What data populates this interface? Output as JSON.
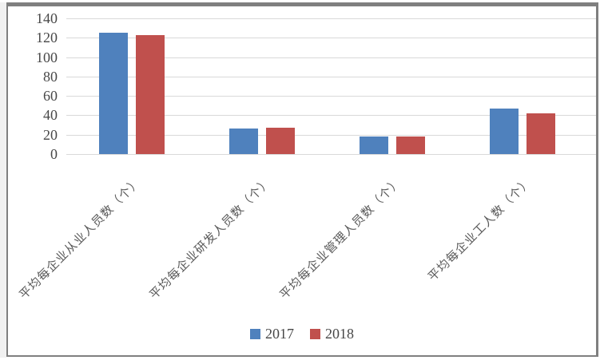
{
  "chart_data": {
    "type": "bar",
    "categories": [
      "平均每企业从业人员数（个）",
      "平均每企业研发人员数（个）",
      "平均每企业管理人员数（个）",
      "平均每企业工人数（个）"
    ],
    "series": [
      {
        "name": "2017",
        "color": "#4F81BD",
        "values": [
          125,
          26,
          18,
          47
        ]
      },
      {
        "name": "2018",
        "color": "#C0504D",
        "values": [
          123,
          27,
          18,
          42
        ]
      }
    ],
    "title": "",
    "xlabel": "",
    "ylabel": "",
    "ylim": [
      0,
      140
    ],
    "yticks": [
      0,
      20,
      40,
      60,
      80,
      100,
      120,
      140
    ],
    "grid": true,
    "legend_position": "bottom"
  },
  "colors": {
    "grid": "#d9d9d9",
    "axis_text": "#474747",
    "category_text": "#595959",
    "frame_border": "#7f7f7f",
    "background": "#ffffff",
    "series_2017": "#4F81BD",
    "series_2018": "#C0504D"
  }
}
